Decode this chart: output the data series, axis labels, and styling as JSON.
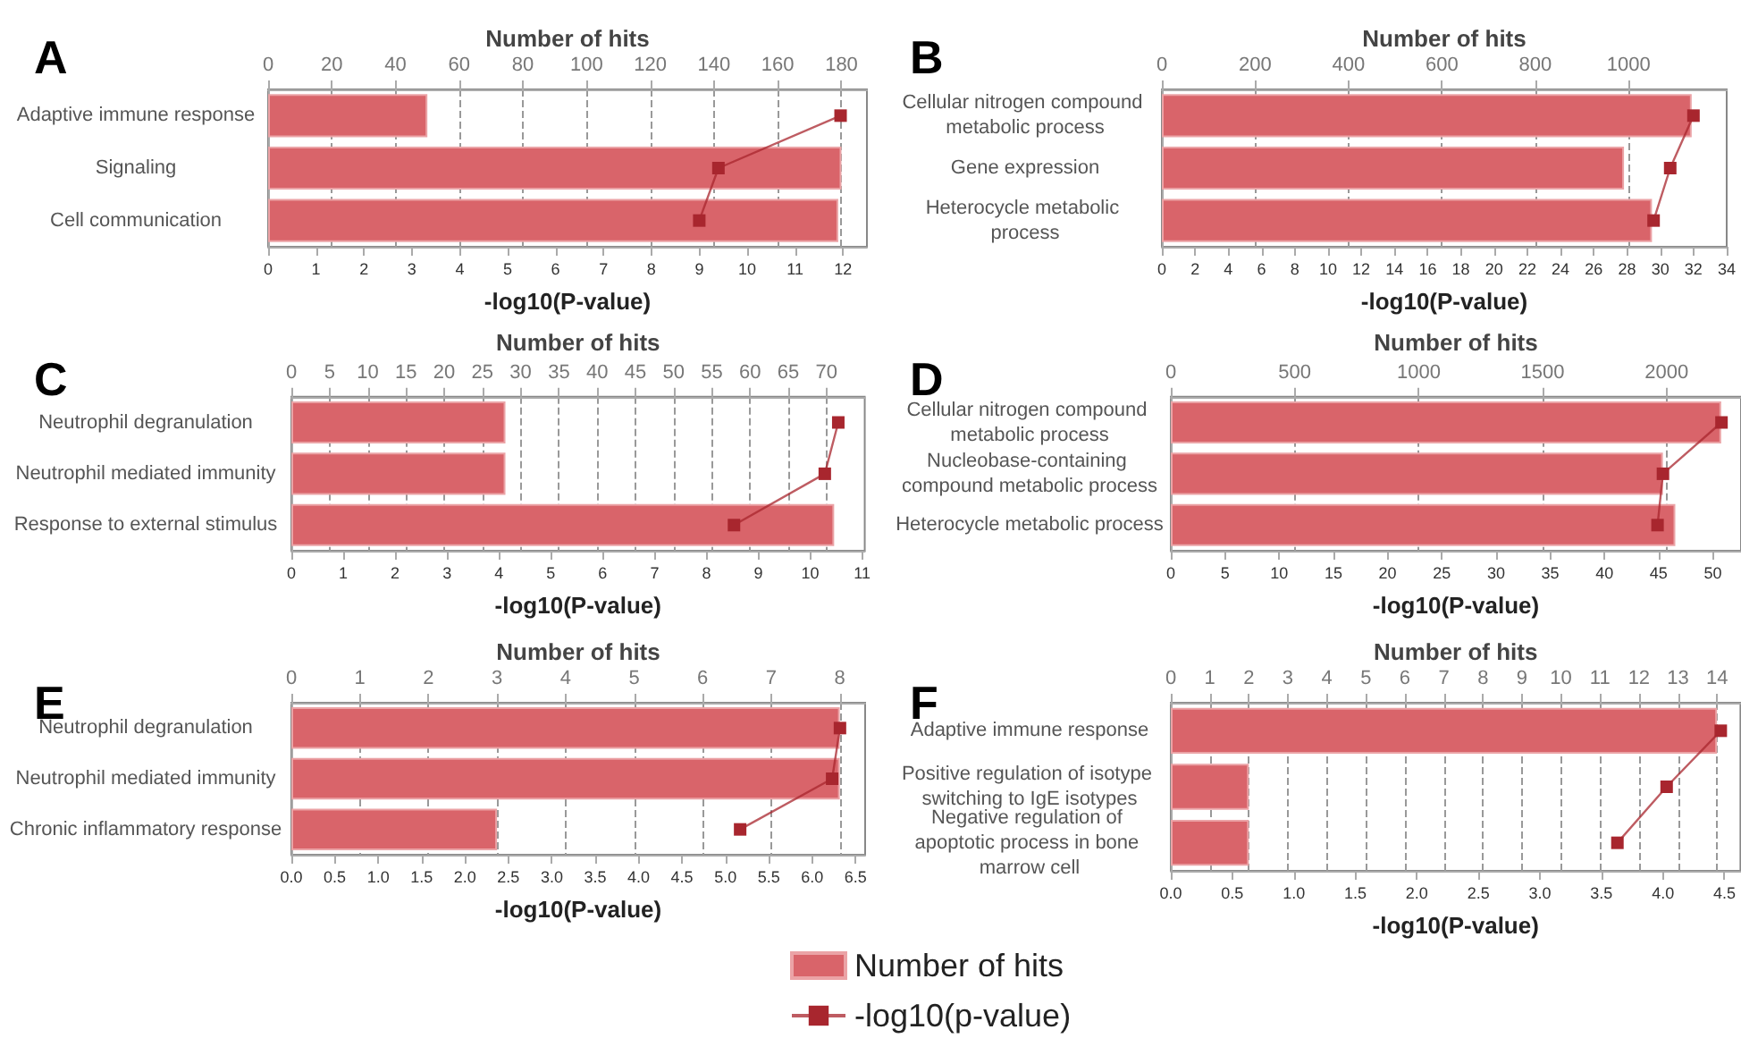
{
  "chart_data": [
    {
      "type": "bar",
      "orientation": "horizontal",
      "title": "A",
      "categories": [
        "Adaptive immune response",
        "Signaling",
        "Cell communication"
      ],
      "xlabel": "-log10(P-value)",
      "x2label": "Number of hits",
      "xlim": [
        0,
        12.5
      ],
      "xticks": [
        0,
        1,
        2,
        3,
        4,
        5,
        6,
        7,
        8,
        9,
        10,
        11,
        12
      ],
      "x2lim": [
        0,
        188
      ],
      "x2ticks": [
        0,
        20,
        40,
        60,
        80,
        100,
        120,
        140,
        160,
        180
      ],
      "grid": true,
      "series": [
        {
          "type": "bar",
          "axis": "x2",
          "color": "#d9646a",
          "values": [
            50,
            180,
            179
          ]
        },
        {
          "type": "line",
          "color": "#a8262e",
          "marker": "square",
          "values": [
            11.95,
            9.4,
            9.0
          ]
        }
      ]
    },
    {
      "type": "bar",
      "orientation": "horizontal",
      "title": "B",
      "categories": [
        "Cellular nitrogen compound metabolic process",
        "Gene expression",
        "Heterocycle metabolic process"
      ],
      "xlabel": "-log10(P-value)",
      "x2label": "Number of hits",
      "xlim": [
        0,
        34
      ],
      "xticks": [
        0,
        2,
        4,
        6,
        8,
        10,
        12,
        14,
        16,
        18,
        20,
        22,
        24,
        26,
        28,
        30,
        32,
        34
      ],
      "x2lim": [
        0,
        1210
      ],
      "x2ticks": [
        0,
        200,
        400,
        600,
        800,
        1000
      ],
      "grid": true,
      "series": [
        {
          "type": "bar",
          "axis": "x2",
          "color": "#d9646a",
          "values": [
            1135,
            990,
            1050
          ]
        },
        {
          "type": "line",
          "color": "#a8262e",
          "marker": "square",
          "values": [
            32.0,
            30.6,
            29.6
          ]
        }
      ]
    },
    {
      "type": "bar",
      "orientation": "horizontal",
      "title": "C",
      "categories": [
        "Neutrophil degranulation",
        "Neutrophil mediated immunity",
        "Response to external stimulus"
      ],
      "xlabel": "-log10(P-value)",
      "x2label": "Number of hits",
      "xlim": [
        0,
        11.05
      ],
      "xticks": [
        0,
        1,
        2,
        3,
        4,
        5,
        6,
        7,
        8,
        9,
        10,
        11
      ],
      "x2lim": [
        0,
        75
      ],
      "x2ticks": [
        0,
        5,
        10,
        15,
        20,
        25,
        30,
        35,
        40,
        45,
        50,
        55,
        60,
        65,
        70
      ],
      "grid": true,
      "series": [
        {
          "type": "bar",
          "axis": "x2",
          "color": "#d9646a",
          "values": [
            28,
            28,
            71
          ]
        },
        {
          "type": "line",
          "color": "#a8262e",
          "marker": "square",
          "values": [
            10.54,
            10.28,
            8.53
          ]
        }
      ]
    },
    {
      "type": "bar",
      "orientation": "horizontal",
      "title": "D",
      "categories": [
        "Cellular nitrogen compound metabolic process",
        "Nucleobase-containing compound metabolic process",
        "Heterocycle metabolic process"
      ],
      "xlabel": "-log10(P-value)",
      "x2label": "Number of hits",
      "xlim": [
        0,
        52.6
      ],
      "xticks": [
        0,
        5,
        10,
        15,
        20,
        25,
        30,
        35,
        40,
        45,
        50
      ],
      "x2lim": [
        0,
        2300
      ],
      "x2ticks": [
        0,
        500,
        1000,
        1500,
        2000
      ],
      "grid": true,
      "series": [
        {
          "type": "bar",
          "axis": "x2",
          "color": "#d9646a",
          "values": [
            2220,
            1985,
            2035
          ]
        },
        {
          "type": "line",
          "color": "#a8262e",
          "marker": "square",
          "values": [
            50.8,
            45.4,
            44.9
          ]
        }
      ]
    },
    {
      "type": "bar",
      "orientation": "horizontal",
      "title": "E",
      "categories": [
        "Neutrophil degranulation",
        "Neutrophil mediated immunity",
        "Chronic inflammatory response"
      ],
      "xlabel": "-log10(P-value)",
      "x2label": "Number of hits",
      "xlim": [
        0,
        6.61
      ],
      "xticks": [
        {
          "value": 0,
          "label": "0.0"
        },
        0.5,
        {
          "value": 1,
          "label": "1.0"
        },
        1.5,
        {
          "value": 2,
          "label": "2.0"
        },
        2.5,
        {
          "value": 3,
          "label": "3.0"
        },
        3.5,
        {
          "value": 4,
          "label": "4.0"
        },
        4.5,
        {
          "value": 5,
          "label": "5.0"
        },
        5.5,
        {
          "value": 6,
          "label": "6.0"
        },
        6.5
      ],
      "x2lim": [
        0,
        8.37
      ],
      "x2ticks": [
        0,
        1,
        2,
        3,
        4,
        5,
        6,
        7,
        8
      ],
      "grid": true,
      "series": [
        {
          "type": "bar",
          "axis": "x2",
          "color": "#d9646a",
          "values": [
            8,
            8,
            3
          ]
        },
        {
          "type": "line",
          "color": "#a8262e",
          "marker": "square",
          "values": [
            6.32,
            6.23,
            5.17
          ]
        }
      ]
    },
    {
      "type": "bar",
      "orientation": "horizontal",
      "title": "F",
      "categories": [
        "Adaptive immune response",
        "Positive regulation of isotype switching to IgE isotypes",
        "Negative regulation of apoptotic process in bone marrow cell"
      ],
      "xlabel": "-log10(P-value)",
      "x2label": "Number of hits",
      "xlim": [
        0,
        4.63
      ],
      "xticks": [
        {
          "value": 0,
          "label": "0.0"
        },
        0.5,
        {
          "value": 1,
          "label": "1.0"
        },
        1.5,
        {
          "value": 2,
          "label": "2.0"
        },
        2.5,
        {
          "value": 3,
          "label": "3.0"
        },
        3.5,
        {
          "value": 4,
          "label": "4.0"
        },
        4.5
      ],
      "x2lim": [
        0,
        14.6
      ],
      "x2ticks": [
        0,
        1,
        2,
        3,
        4,
        5,
        6,
        7,
        8,
        9,
        10,
        11,
        12,
        13,
        14
      ],
      "grid": true,
      "legend": "bottom",
      "series": [
        {
          "type": "bar",
          "axis": "x2",
          "name": "Number of hits",
          "color": "#d9646a",
          "values": [
            14,
            2,
            2
          ]
        },
        {
          "type": "line",
          "name": "-log10(p-value)",
          "color": "#a8262e",
          "marker": "square",
          "values": [
            4.47,
            4.03,
            3.63
          ]
        }
      ]
    }
  ]
}
